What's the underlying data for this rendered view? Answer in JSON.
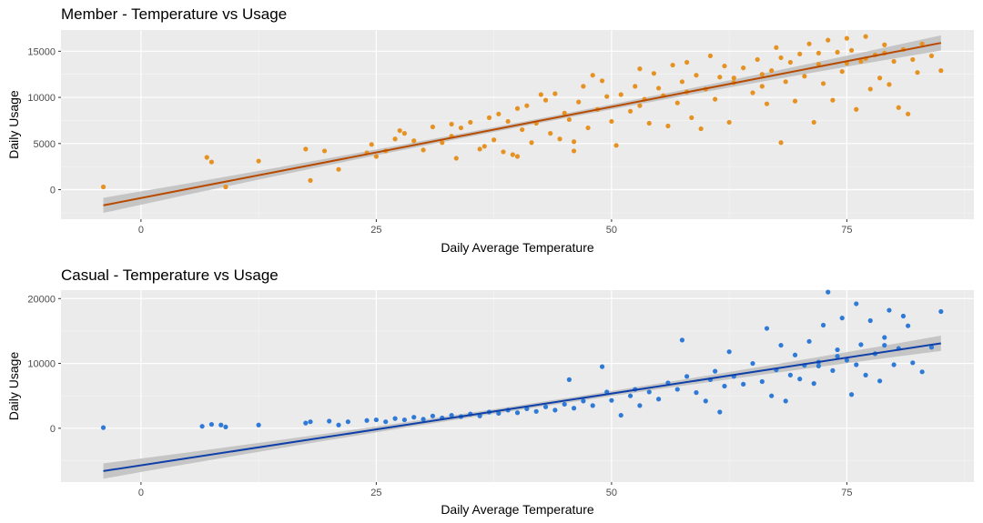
{
  "chart_data": [
    {
      "type": "scatter",
      "title": "Member - Temperature vs Usage",
      "xlabel": "Daily Average Temperature",
      "ylabel": "Daily Usage",
      "xlim": [
        -8.5,
        88.5
      ],
      "ylim": [
        -3200,
        17300
      ],
      "x_ticks": [
        0,
        25,
        50,
        75
      ],
      "y_ticks": [
        0,
        5000,
        10000,
        15000
      ],
      "grid": true,
      "legend": "none",
      "point_color": "#E69222",
      "line_color": "#B84A00",
      "band_color": "#BEBEBE",
      "panel_bg": "#EBEBEB",
      "trend_line": {
        "x": [
          -4,
          85
        ],
        "y": [
          -1700,
          15900
        ]
      },
      "points": [
        [
          -4,
          300
        ],
        [
          7,
          3500
        ],
        [
          7.5,
          3000
        ],
        [
          9,
          300
        ],
        [
          12.5,
          3100
        ],
        [
          17.5,
          4400
        ],
        [
          18,
          1000
        ],
        [
          19.5,
          4200
        ],
        [
          21,
          2200
        ],
        [
          24,
          4000
        ],
        [
          24.5,
          4900
        ],
        [
          25,
          3600
        ],
        [
          26,
          4200
        ],
        [
          27,
          5500
        ],
        [
          27.5,
          6400
        ],
        [
          28,
          6100
        ],
        [
          29,
          5300
        ],
        [
          30,
          4300
        ],
        [
          31,
          6800
        ],
        [
          32,
          5100
        ],
        [
          33,
          5800
        ],
        [
          33.5,
          3400
        ],
        [
          34,
          6700
        ],
        [
          35,
          7300
        ],
        [
          36,
          4400
        ],
        [
          36.5,
          4700
        ],
        [
          37,
          7800
        ],
        [
          37.5,
          5400
        ],
        [
          38,
          8200
        ],
        [
          38.5,
          4100
        ],
        [
          39,
          7400
        ],
        [
          39.5,
          3800
        ],
        [
          40,
          8800
        ],
        [
          40.5,
          6500
        ],
        [
          41,
          9100
        ],
        [
          41.5,
          5100
        ],
        [
          42,
          7200
        ],
        [
          42.5,
          10300
        ],
        [
          43,
          9700
        ],
        [
          43.5,
          6100
        ],
        [
          44,
          10400
        ],
        [
          44.5,
          5500
        ],
        [
          45,
          8300
        ],
        [
          45.5,
          7600
        ],
        [
          46,
          4200
        ],
        [
          46.5,
          9500
        ],
        [
          47,
          11200
        ],
        [
          47.5,
          6700
        ],
        [
          48,
          12400
        ],
        [
          48.5,
          8700
        ],
        [
          49,
          11800
        ],
        [
          49.5,
          10100
        ],
        [
          50,
          7400
        ],
        [
          50.5,
          4800
        ],
        [
          51,
          10300
        ],
        [
          52,
          8500
        ],
        [
          52.5,
          11200
        ],
        [
          53,
          13100
        ],
        [
          53.5,
          9800
        ],
        [
          54,
          7200
        ],
        [
          54.5,
          12600
        ],
        [
          55,
          11000
        ],
        [
          55.5,
          10200
        ],
        [
          56,
          6900
        ],
        [
          56.5,
          13500
        ],
        [
          57,
          9400
        ],
        [
          57.5,
          11700
        ],
        [
          58,
          13800
        ],
        [
          58.5,
          7800
        ],
        [
          59,
          12400
        ],
        [
          59.5,
          6600
        ],
        [
          60,
          10900
        ],
        [
          60.5,
          14500
        ],
        [
          61,
          9800
        ],
        [
          61.5,
          12200
        ],
        [
          62,
          13400
        ],
        [
          62.5,
          7300
        ],
        [
          63,
          11600
        ],
        [
          64,
          13200
        ],
        [
          65,
          10500
        ],
        [
          65.5,
          14100
        ],
        [
          66,
          12500
        ],
        [
          66.5,
          9300
        ],
        [
          67,
          12900
        ],
        [
          67.5,
          15400
        ],
        [
          68,
          5100
        ],
        [
          68.5,
          11700
        ],
        [
          69,
          13800
        ],
        [
          69.5,
          9600
        ],
        [
          70,
          14700
        ],
        [
          70.5,
          12300
        ],
        [
          71,
          15800
        ],
        [
          71.5,
          7300
        ],
        [
          72,
          13600
        ],
        [
          72.5,
          11500
        ],
        [
          73,
          16200
        ],
        [
          73.5,
          9700
        ],
        [
          74,
          14900
        ],
        [
          74.5,
          12800
        ],
        [
          75,
          16400
        ],
        [
          75.5,
          15100
        ],
        [
          76,
          8700
        ],
        [
          76.5,
          13900
        ],
        [
          77,
          16600
        ],
        [
          77.5,
          10900
        ],
        [
          78,
          14600
        ],
        [
          78.5,
          12100
        ],
        [
          79,
          15700
        ],
        [
          79.5,
          11400
        ],
        [
          80,
          13900
        ],
        [
          80.5,
          8900
        ],
        [
          81,
          15200
        ],
        [
          81.5,
          8200
        ],
        [
          82,
          14100
        ],
        [
          82.5,
          12700
        ],
        [
          83,
          15800
        ],
        [
          84,
          14500
        ],
        [
          85,
          12900
        ],
        [
          33,
          7100
        ],
        [
          40,
          3600
        ],
        [
          46,
          5200
        ],
        [
          53,
          9100
        ],
        [
          58,
          10600
        ],
        [
          63,
          12100
        ],
        [
          68,
          14300
        ],
        [
          72,
          14800
        ],
        [
          75,
          13700
        ],
        [
          77,
          14200
        ],
        [
          79,
          14800
        ],
        [
          66,
          11200
        ]
      ]
    },
    {
      "type": "scatter",
      "title": "Casual - Temperature vs Usage",
      "xlabel": "Daily Average Temperature",
      "ylabel": "Daily Usage",
      "xlim": [
        -8.5,
        88.5
      ],
      "ylim": [
        -8300,
        21300
      ],
      "x_ticks": [
        0,
        25,
        50,
        75
      ],
      "y_ticks": [
        0,
        10000,
        20000
      ],
      "grid": true,
      "legend": "none",
      "point_color": "#2E7AD6",
      "line_color": "#0F3FA8",
      "band_color": "#BEBEBE",
      "panel_bg": "#EBEBEB",
      "trend_line": {
        "x": [
          -4,
          85
        ],
        "y": [
          -6600,
          13100
        ]
      },
      "points": [
        [
          -4,
          100
        ],
        [
          6.5,
          300
        ],
        [
          7.5,
          600
        ],
        [
          8.5,
          500
        ],
        [
          9,
          200
        ],
        [
          12.5,
          500
        ],
        [
          17.5,
          800
        ],
        [
          18,
          1000
        ],
        [
          20,
          1100
        ],
        [
          21,
          500
        ],
        [
          22,
          1000
        ],
        [
          24,
          1200
        ],
        [
          25,
          1300
        ],
        [
          26,
          1000
        ],
        [
          27,
          1500
        ],
        [
          28,
          1300
        ],
        [
          29,
          1700
        ],
        [
          30,
          1400
        ],
        [
          31,
          1900
        ],
        [
          32,
          1600
        ],
        [
          33,
          2000
        ],
        [
          34,
          1800
        ],
        [
          35,
          2200
        ],
        [
          36,
          1900
        ],
        [
          37,
          2500
        ],
        [
          38,
          2300
        ],
        [
          39,
          2800
        ],
        [
          40,
          2400
        ],
        [
          41,
          3000
        ],
        [
          42,
          2600
        ],
        [
          43,
          3300
        ],
        [
          44,
          2800
        ],
        [
          45,
          3700
        ],
        [
          45.5,
          7500
        ],
        [
          46,
          3100
        ],
        [
          47,
          4200
        ],
        [
          48,
          3500
        ],
        [
          49,
          9500
        ],
        [
          49.5,
          5600
        ],
        [
          50,
          4300
        ],
        [
          51,
          2000
        ],
        [
          52,
          5000
        ],
        [
          52.5,
          6000
        ],
        [
          53,
          3500
        ],
        [
          54,
          5600
        ],
        [
          55,
          4500
        ],
        [
          56,
          7000
        ],
        [
          57,
          6000
        ],
        [
          57.5,
          13600
        ],
        [
          58,
          8000
        ],
        [
          59,
          5500
        ],
        [
          60,
          4200
        ],
        [
          60.5,
          7500
        ],
        [
          61,
          8800
        ],
        [
          61.5,
          2500
        ],
        [
          62,
          6500
        ],
        [
          62.5,
          11800
        ],
        [
          63,
          8000
        ],
        [
          64,
          6800
        ],
        [
          65,
          10000
        ],
        [
          66,
          7200
        ],
        [
          66.5,
          15400
        ],
        [
          67,
          5000
        ],
        [
          67.5,
          9000
        ],
        [
          68,
          12800
        ],
        [
          68.5,
          4200
        ],
        [
          69,
          8200
        ],
        [
          69.5,
          11300
        ],
        [
          70,
          7600
        ],
        [
          70.5,
          9700
        ],
        [
          71,
          13400
        ],
        [
          71.5,
          6900
        ],
        [
          72,
          10200
        ],
        [
          72.5,
          15900
        ],
        [
          73,
          21000
        ],
        [
          73.5,
          8900
        ],
        [
          74,
          12100
        ],
        [
          74.5,
          17000
        ],
        [
          75,
          10500
        ],
        [
          75.5,
          5200
        ],
        [
          76,
          19200
        ],
        [
          76.5,
          12900
        ],
        [
          77,
          8200
        ],
        [
          77.5,
          16600
        ],
        [
          78,
          11500
        ],
        [
          78.5,
          7300
        ],
        [
          79,
          14000
        ],
        [
          79.5,
          18200
        ],
        [
          80,
          9800
        ],
        [
          80.5,
          12300
        ],
        [
          81,
          17300
        ],
        [
          81.5,
          15800
        ],
        [
          82,
          10100
        ],
        [
          83,
          8700
        ],
        [
          84,
          12500
        ],
        [
          85,
          18000
        ],
        [
          74,
          11100
        ],
        [
          76,
          9800
        ],
        [
          79,
          12800
        ],
        [
          72,
          9600
        ]
      ]
    }
  ]
}
